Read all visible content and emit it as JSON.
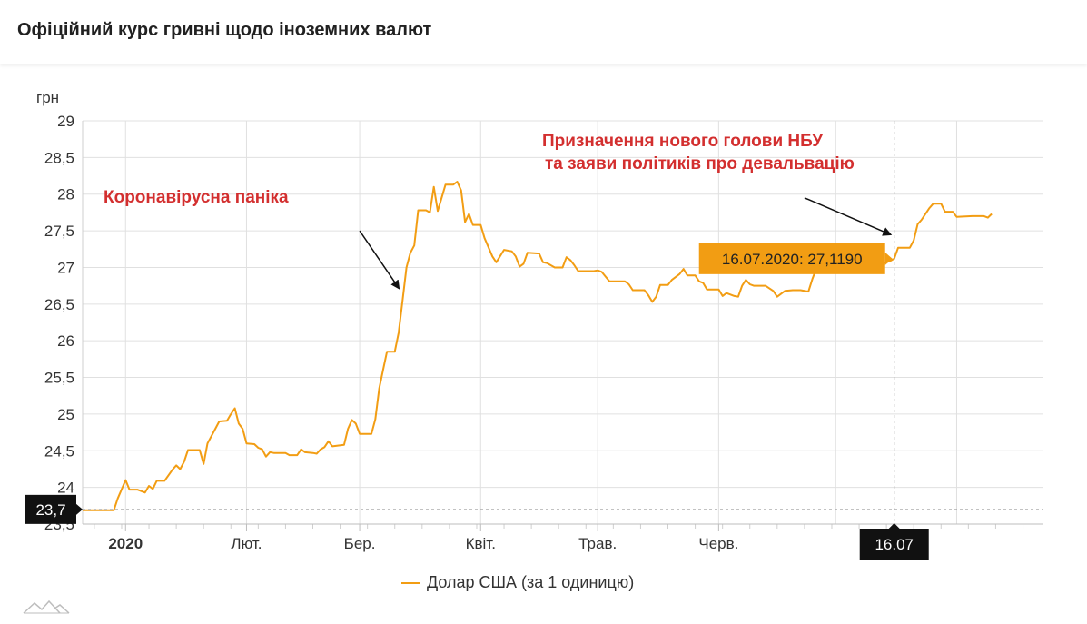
{
  "page": {
    "title": "Офіційний курс гривні щодо іноземних валют"
  },
  "legend": {
    "label": "Долар США (за 1 одиницю)"
  },
  "colors": {
    "line": "#f29d13",
    "tooltip_bg": "#f29d13",
    "annotation": "#d32f2f",
    "marker_bg": "#111111",
    "grid": "#e0e0e0"
  },
  "icons": {
    "logo": "mountain-logo-icon"
  },
  "chart_data": {
    "type": "line",
    "title": "Офіційний курс гривні щодо іноземних валют",
    "ylabel": "грн",
    "ylim": [
      23.5,
      29
    ],
    "yticks": [
      23.5,
      24,
      24.5,
      25,
      25.5,
      26,
      26.5,
      27,
      27.5,
      28,
      28.5,
      29
    ],
    "ytick_labels": [
      "23,5",
      "24",
      "24,5",
      "25",
      "25,5",
      "26",
      "26,5",
      "27",
      "27,5",
      "28",
      "28,5",
      "29"
    ],
    "xlim": [
      "2019-12-21",
      "2020-08-23"
    ],
    "xticks": [
      {
        "date": "2020-01-01",
        "label": "2020",
        "bold": true
      },
      {
        "date": "2020-02-01",
        "label": "Лют."
      },
      {
        "date": "2020-03-01",
        "label": "Бер."
      },
      {
        "date": "2020-04-01",
        "label": "Квіт."
      },
      {
        "date": "2020-05-01",
        "label": "Трав."
      },
      {
        "date": "2020-06-01",
        "label": "Черв."
      }
    ],
    "grid": true,
    "legend_position": "bottom",
    "series": [
      {
        "name": "Долар США (за 1 одиницю)",
        "points": [
          [
            "2019-12-21",
            23.69
          ],
          [
            "2019-12-29",
            23.69
          ],
          [
            "2019-12-30",
            23.85
          ],
          [
            "2020-01-01",
            24.1
          ],
          [
            "2020-01-02",
            23.97
          ],
          [
            "2020-01-04",
            23.97
          ],
          [
            "2020-01-06",
            23.93
          ],
          [
            "2020-01-07",
            24.02
          ],
          [
            "2020-01-08",
            23.98
          ],
          [
            "2020-01-09",
            24.09
          ],
          [
            "2020-01-11",
            24.09
          ],
          [
            "2020-01-13",
            24.24
          ],
          [
            "2020-01-14",
            24.3
          ],
          [
            "2020-01-15",
            24.25
          ],
          [
            "2020-01-16",
            24.35
          ],
          [
            "2020-01-17",
            24.51
          ],
          [
            "2020-01-20",
            24.51
          ],
          [
            "2020-01-21",
            24.32
          ],
          [
            "2020-01-22",
            24.6
          ],
          [
            "2020-01-24",
            24.8
          ],
          [
            "2020-01-25",
            24.9
          ],
          [
            "2020-01-27",
            24.91
          ],
          [
            "2020-01-28",
            25.0
          ],
          [
            "2020-01-29",
            25.08
          ],
          [
            "2020-01-30",
            24.87
          ],
          [
            "2020-01-31",
            24.8
          ],
          [
            "2020-02-01",
            24.6
          ],
          [
            "2020-02-03",
            24.59
          ],
          [
            "2020-02-04",
            24.54
          ],
          [
            "2020-02-05",
            24.52
          ],
          [
            "2020-02-06",
            24.42
          ],
          [
            "2020-02-07",
            24.48
          ],
          [
            "2020-02-08",
            24.47
          ],
          [
            "2020-02-11",
            24.47
          ],
          [
            "2020-02-12",
            24.44
          ],
          [
            "2020-02-14",
            24.44
          ],
          [
            "2020-02-15",
            24.52
          ],
          [
            "2020-02-16",
            24.48
          ],
          [
            "2020-02-18",
            24.47
          ],
          [
            "2020-02-19",
            24.46
          ],
          [
            "2020-02-20",
            24.52
          ],
          [
            "2020-02-21",
            24.55
          ],
          [
            "2020-02-22",
            24.63
          ],
          [
            "2020-02-23",
            24.56
          ],
          [
            "2020-02-26",
            24.58
          ],
          [
            "2020-02-27",
            24.8
          ],
          [
            "2020-02-28",
            24.92
          ],
          [
            "2020-02-29",
            24.87
          ],
          [
            "2020-03-01",
            24.73
          ],
          [
            "2020-03-04",
            24.73
          ],
          [
            "2020-03-05",
            24.93
          ],
          [
            "2020-03-06",
            25.35
          ],
          [
            "2020-03-07",
            25.6
          ],
          [
            "2020-03-08",
            25.85
          ],
          [
            "2020-03-10",
            25.85
          ],
          [
            "2020-03-11",
            26.11
          ],
          [
            "2020-03-12",
            26.55
          ],
          [
            "2020-03-13",
            27.0
          ],
          [
            "2020-03-14",
            27.2
          ],
          [
            "2020-03-15",
            27.3
          ],
          [
            "2020-03-16",
            27.78
          ],
          [
            "2020-03-18",
            27.78
          ],
          [
            "2020-03-19",
            27.75
          ],
          [
            "2020-03-20",
            28.1
          ],
          [
            "2020-03-21",
            27.77
          ],
          [
            "2020-03-22",
            27.95
          ],
          [
            "2020-03-23",
            28.13
          ],
          [
            "2020-03-25",
            28.13
          ],
          [
            "2020-03-26",
            28.17
          ],
          [
            "2020-03-27",
            28.05
          ],
          [
            "2020-03-28",
            27.62
          ],
          [
            "2020-03-29",
            27.73
          ],
          [
            "2020-03-30",
            27.58
          ],
          [
            "2020-04-01",
            27.58
          ],
          [
            "2020-04-02",
            27.4
          ],
          [
            "2020-04-04",
            27.15
          ],
          [
            "2020-04-05",
            27.07
          ],
          [
            "2020-04-07",
            27.24
          ],
          [
            "2020-04-09",
            27.22
          ],
          [
            "2020-04-10",
            27.15
          ],
          [
            "2020-04-11",
            27.01
          ],
          [
            "2020-04-12",
            27.05
          ],
          [
            "2020-04-13",
            27.2
          ],
          [
            "2020-04-16",
            27.19
          ],
          [
            "2020-04-17",
            27.07
          ],
          [
            "2020-04-18",
            27.06
          ],
          [
            "2020-04-20",
            27.0
          ],
          [
            "2020-04-22",
            27.0
          ],
          [
            "2020-04-23",
            27.14
          ],
          [
            "2020-04-24",
            27.1
          ],
          [
            "2020-04-25",
            27.03
          ],
          [
            "2020-04-26",
            26.95
          ],
          [
            "2020-04-30",
            26.95
          ],
          [
            "2020-05-01",
            26.96
          ],
          [
            "2020-05-02",
            26.94
          ],
          [
            "2020-05-04",
            26.81
          ],
          [
            "2020-05-08",
            26.81
          ],
          [
            "2020-05-09",
            26.77
          ],
          [
            "2020-05-10",
            26.69
          ],
          [
            "2020-05-13",
            26.69
          ],
          [
            "2020-05-14",
            26.62
          ],
          [
            "2020-05-15",
            26.53
          ],
          [
            "2020-05-16",
            26.6
          ],
          [
            "2020-05-17",
            26.76
          ],
          [
            "2020-05-19",
            26.76
          ],
          [
            "2020-05-20",
            26.83
          ],
          [
            "2020-05-22",
            26.91
          ],
          [
            "2020-05-23",
            26.98
          ],
          [
            "2020-05-24",
            26.89
          ],
          [
            "2020-05-26",
            26.89
          ],
          [
            "2020-05-27",
            26.81
          ],
          [
            "2020-05-28",
            26.79
          ],
          [
            "2020-05-29",
            26.7
          ],
          [
            "2020-06-01",
            26.7
          ],
          [
            "2020-06-02",
            26.61
          ],
          [
            "2020-06-03",
            26.65
          ],
          [
            "2020-06-05",
            26.61
          ],
          [
            "2020-06-06",
            26.6
          ],
          [
            "2020-06-07",
            26.75
          ],
          [
            "2020-06-08",
            26.83
          ],
          [
            "2020-06-09",
            26.77
          ],
          [
            "2020-06-10",
            26.75
          ],
          [
            "2020-06-13",
            26.75
          ],
          [
            "2020-06-15",
            26.68
          ],
          [
            "2020-06-16",
            26.6
          ],
          [
            "2020-06-18",
            26.68
          ],
          [
            "2020-06-20",
            26.69
          ],
          [
            "2020-06-22",
            26.69
          ],
          [
            "2020-06-24",
            26.67
          ],
          [
            "2020-06-25",
            26.84
          ],
          [
            "2020-06-26",
            26.98
          ],
          [
            "2020-06-27",
            27.02
          ],
          [
            "2020-07-01",
            27.02
          ],
          [
            "2020-07-02",
            27.0
          ],
          [
            "2020-07-05",
            27.01
          ],
          [
            "2020-07-07",
            27.05
          ],
          [
            "2020-07-09",
            27.04
          ],
          [
            "2020-07-11",
            27.05
          ],
          [
            "2020-07-13",
            27.05
          ],
          [
            "2020-07-15",
            27.09
          ],
          [
            "2020-07-16",
            27.119
          ],
          [
            "2020-07-17",
            27.27
          ],
          [
            "2020-07-20",
            27.27
          ],
          [
            "2020-07-21",
            27.37
          ],
          [
            "2020-07-22",
            27.59
          ],
          [
            "2020-07-23",
            27.65
          ],
          [
            "2020-07-25",
            27.81
          ],
          [
            "2020-07-26",
            27.87
          ],
          [
            "2020-07-28",
            27.87
          ],
          [
            "2020-07-29",
            27.76
          ],
          [
            "2020-07-31",
            27.76
          ],
          [
            "2020-08-01",
            27.69
          ],
          [
            "2020-08-05",
            27.7
          ],
          [
            "2020-08-08",
            27.7
          ],
          [
            "2020-08-09",
            27.68
          ],
          [
            "2020-08-10",
            27.73
          ]
        ]
      }
    ],
    "crosshair": {
      "date": "2020-07-16",
      "x_label": "16.07",
      "y_value": 23.7,
      "y_label": "23,7"
    },
    "tooltip": {
      "text": "16.07.2020: 27,1190",
      "date": "2020-07-16",
      "value": 27.119
    },
    "annotations": [
      {
        "lines": [
          "Коронавірусна паніка"
        ],
        "arrow_from": [
          "2020-03-01",
          27.5
        ],
        "arrow_to": [
          "2020-03-11",
          26.72
        ]
      },
      {
        "lines": [
          "Призначення нового голови НБУ",
          "та заяви політиків про девальвацію"
        ],
        "arrow_from": [
          "2020-06-23",
          27.95
        ],
        "arrow_to": [
          "2020-07-15",
          27.45
        ]
      }
    ]
  }
}
